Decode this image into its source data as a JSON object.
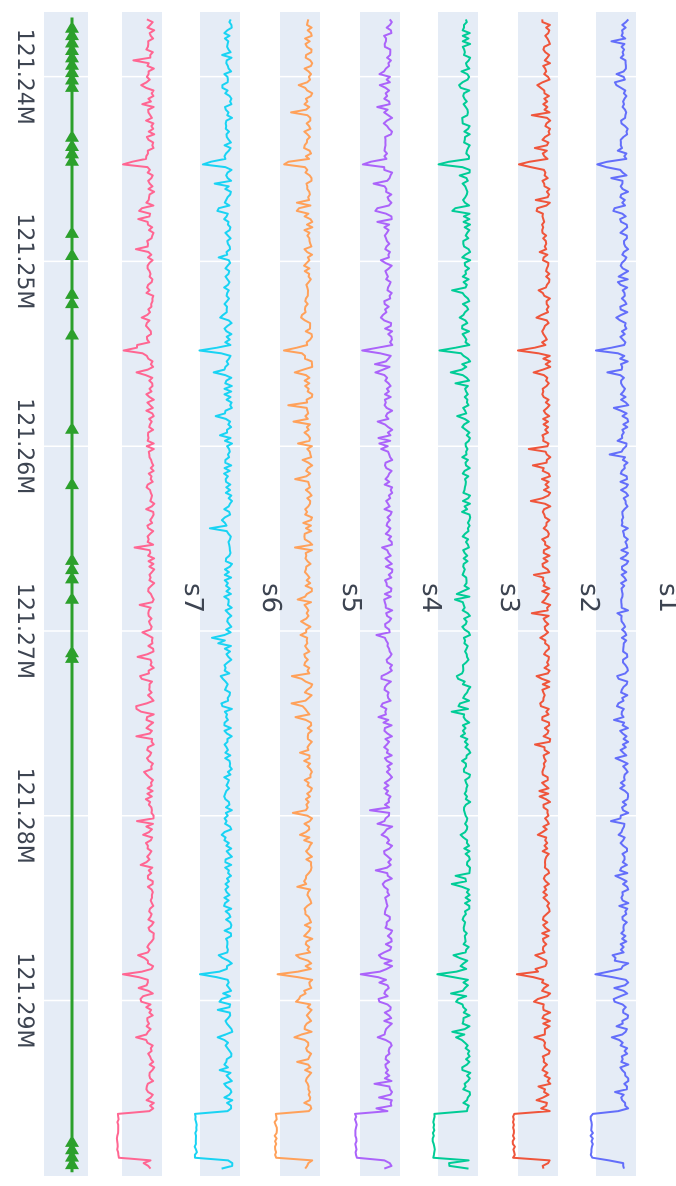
{
  "chart_data": {
    "type": "line",
    "orientation": "vertical tracks",
    "x_axis": {
      "tick_labels": [
        "121.24M",
        "121.25M",
        "121.26M",
        "121.27M",
        "121.28M",
        "121.29M"
      ],
      "tick_values": [
        121240000,
        121250000,
        121260000,
        121270000,
        121280000,
        121290000
      ],
      "range": [
        121236500,
        121299500
      ],
      "grid": true
    },
    "panels": [
      {
        "name": "s1",
        "color": "#636efa"
      },
      {
        "name": "s2",
        "color": "#ef553b"
      },
      {
        "name": "s3",
        "color": "#00cc96"
      },
      {
        "name": "s4",
        "color": "#ab63fa"
      },
      {
        "name": "s5",
        "color": "#ffa15a"
      },
      {
        "name": "s6",
        "color": "#19d3f3"
      },
      {
        "name": "s7",
        "color": "#ff6692"
      }
    ],
    "shared_peaks": [
      {
        "x": 121240500,
        "amp": 0.35
      },
      {
        "x": 121244700,
        "amp": 0.85
      },
      {
        "x": 121247200,
        "amp": 0.5
      },
      {
        "x": 121253000,
        "amp": 0.35
      },
      {
        "x": 121254800,
        "amp": 0.75
      },
      {
        "x": 121256000,
        "amp": 0.45
      },
      {
        "x": 121272500,
        "amp": 0.4
      },
      {
        "x": 121274000,
        "amp": 0.35
      },
      {
        "x": 121281000,
        "amp": 0.3
      },
      {
        "x": 121287600,
        "amp": 0.45
      },
      {
        "x": 121288600,
        "amp": 0.8
      },
      {
        "x": 121290000,
        "amp": 0.45
      },
      {
        "x": 121292000,
        "amp": 0.4
      }
    ],
    "plateau": {
      "x_start": 121296000,
      "x_end": 121298600,
      "level": 0.85
    },
    "gene_track": {
      "color": "#2ca02c",
      "span": [
        121236800,
        121299300
      ],
      "exons": [
        121237300,
        121237700,
        121238100,
        121238500,
        121238900,
        121239300,
        121239700,
        121240100,
        121240500,
        121243200,
        121243700,
        121244100,
        121244500,
        121248400,
        121249600,
        121251700,
        121252200,
        121253900,
        121259000,
        121262000,
        121266100,
        121266600,
        121267100,
        121268200,
        121271100,
        121271400,
        121297600,
        121298000,
        121298400,
        121298800
      ]
    },
    "gridlines": true
  }
}
